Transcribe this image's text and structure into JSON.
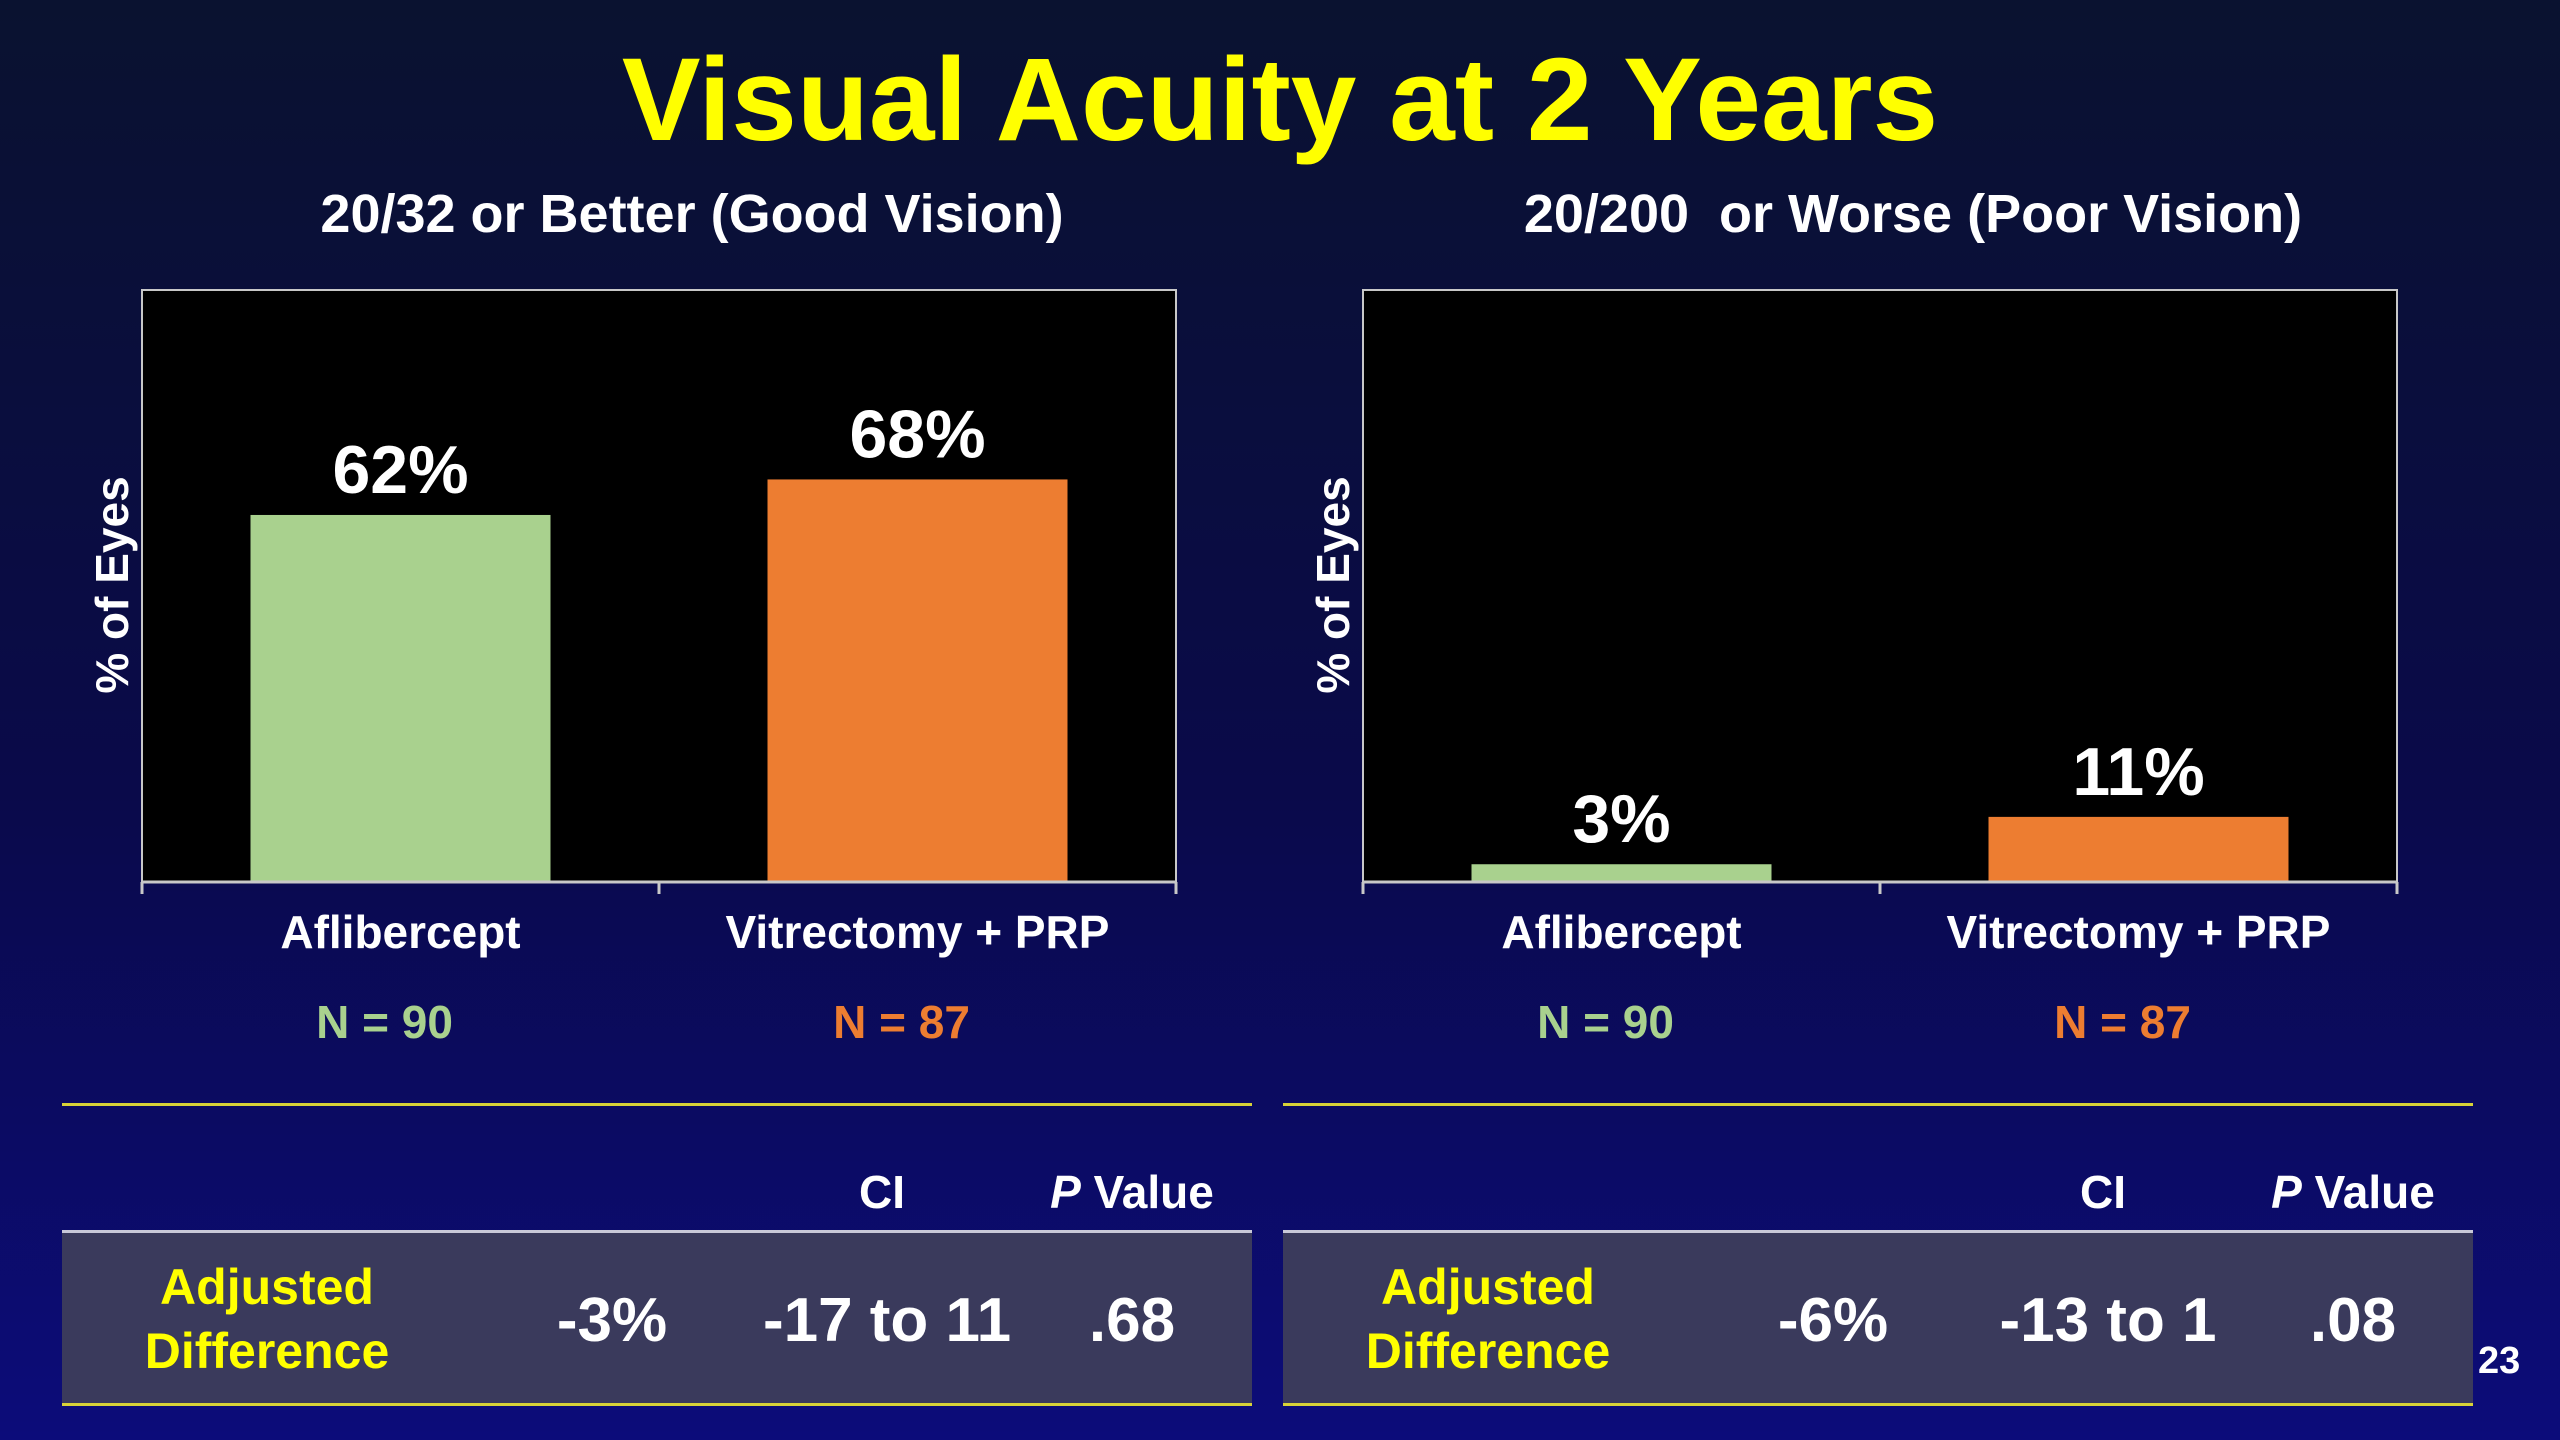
{
  "title": "Visual Acuity at 2 Years",
  "page_number": "23",
  "colors": {
    "aflibercept": "#a9d18e",
    "vitrectomy": "#ed7d31",
    "title": "#ffff00",
    "plot_bg": "#000000"
  },
  "panels": [
    {
      "subtitle": "20/32 or Better (Good Vision)",
      "ylabel": "% of Eyes",
      "groups": [
        {
          "name": "Aflibercept",
          "n": "N = 90"
        },
        {
          "name": "Vitrectomy + PRP",
          "n": "N = 87"
        }
      ],
      "table": {
        "ci_header": "CI",
        "p_header_italic": "P",
        "p_header_rest": " Value",
        "row_label_1": "Adjusted",
        "row_label_2": "Difference",
        "difference": "-3%",
        "ci": "-17 to 11",
        "p_value": ".68"
      }
    },
    {
      "subtitle": "20/200  or Worse (Poor Vision)",
      "ylabel": "% of Eyes",
      "groups": [
        {
          "name": "Aflibercept",
          "n": "N = 90"
        },
        {
          "name": "Vitrectomy + PRP",
          "n": "N = 87"
        }
      ],
      "table": {
        "ci_header": "CI",
        "p_header_italic": "P",
        "p_header_rest": " Value",
        "row_label_1": "Adjusted",
        "row_label_2": "Difference",
        "difference": "-6%",
        "ci": "-13 to 1",
        "p_value": ".08"
      }
    }
  ],
  "chart_data": [
    {
      "type": "bar",
      "title": "20/32 or Better (Good Vision)",
      "ylabel": "% of Eyes",
      "categories": [
        "Aflibercept",
        "Vitrectomy + PRP"
      ],
      "values": [
        62,
        68
      ],
      "labels": [
        "62%",
        "68%"
      ],
      "ylim": [
        0,
        100
      ]
    },
    {
      "type": "bar",
      "title": "20/200  or Worse (Poor Vision)",
      "ylabel": "% of Eyes",
      "categories": [
        "Aflibercept",
        "Vitrectomy + PRP"
      ],
      "values": [
        3,
        11
      ],
      "labels": [
        "3%",
        "11%"
      ],
      "ylim": [
        0,
        100
      ]
    }
  ]
}
